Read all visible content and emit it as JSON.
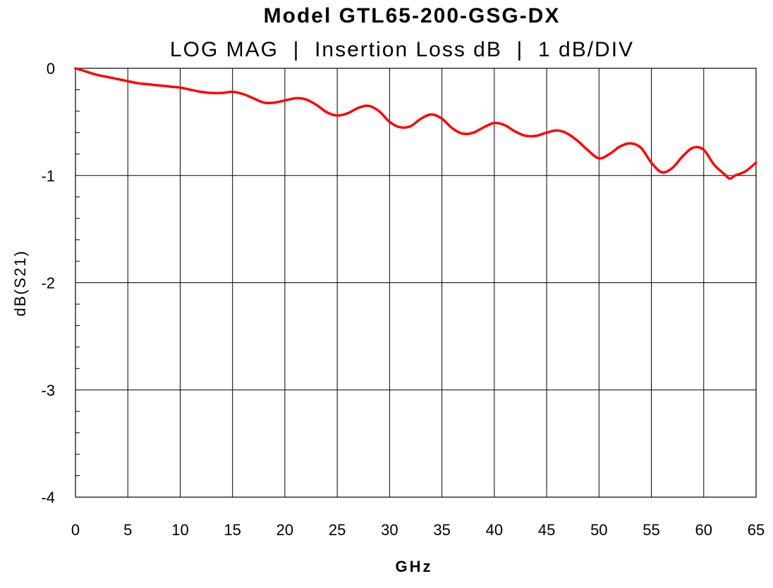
{
  "chart_data": {
    "type": "line",
    "title": "Model GTL65-200-GSG-DX",
    "subtitle": "LOG MAG  |  Insertion Loss dB  |  1 dB/DIV",
    "xlabel": "GHz",
    "ylabel": "dB(S21)",
    "xlim": [
      0,
      65
    ],
    "ylim": [
      -4,
      0
    ],
    "xticks": [
      0,
      5,
      10,
      15,
      20,
      25,
      30,
      35,
      40,
      45,
      50,
      55,
      60,
      65
    ],
    "yticks": [
      0,
      -1,
      -2,
      -3,
      -4
    ],
    "x_tick_labels": [
      "0",
      "5",
      "10",
      "15",
      "20",
      "25",
      "30",
      "35",
      "40",
      "45",
      "50",
      "55",
      "60",
      "65"
    ],
    "y_tick_labels": [
      "0",
      "-1",
      "-2",
      "-3",
      "-4"
    ],
    "grid": true,
    "series": [
      {
        "name": "Insertion Loss",
        "color": "#ff0000",
        "x": [
          0,
          1,
          2,
          3,
          4,
          5,
          6,
          7,
          8,
          9,
          10,
          11,
          12,
          13,
          14,
          15,
          16,
          17,
          18,
          19,
          20,
          21,
          22,
          23,
          24,
          25,
          26,
          27,
          28,
          29,
          30,
          31,
          32,
          33,
          34,
          35,
          36,
          37,
          38,
          39,
          40,
          41,
          42,
          43,
          44,
          45,
          46,
          47,
          48,
          49,
          50,
          51,
          52,
          53,
          54,
          55,
          56,
          57,
          58,
          59,
          60,
          61,
          62,
          62.5,
          63,
          64,
          65
        ],
        "y": [
          0.0,
          -0.03,
          -0.06,
          -0.08,
          -0.1,
          -0.12,
          -0.14,
          -0.15,
          -0.16,
          -0.17,
          -0.18,
          -0.2,
          -0.22,
          -0.23,
          -0.23,
          -0.22,
          -0.24,
          -0.28,
          -0.32,
          -0.32,
          -0.3,
          -0.28,
          -0.29,
          -0.34,
          -0.41,
          -0.44,
          -0.42,
          -0.37,
          -0.35,
          -0.4,
          -0.5,
          -0.55,
          -0.54,
          -0.47,
          -0.43,
          -0.47,
          -0.56,
          -0.61,
          -0.6,
          -0.55,
          -0.51,
          -0.53,
          -0.59,
          -0.63,
          -0.63,
          -0.6,
          -0.58,
          -0.61,
          -0.68,
          -0.77,
          -0.84,
          -0.8,
          -0.73,
          -0.7,
          -0.74,
          -0.88,
          -0.97,
          -0.93,
          -0.82,
          -0.74,
          -0.76,
          -0.9,
          -0.99,
          -1.03,
          -1.0,
          -0.96,
          -0.88
        ]
      }
    ]
  }
}
